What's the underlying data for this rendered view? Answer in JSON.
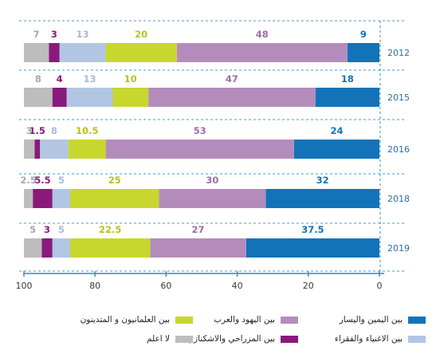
{
  "chart_data": {
    "type": "bar",
    "orientation": "horizontal-stacked",
    "direction": "right-to-left",
    "categories": [
      "2012",
      "2015",
      "2016",
      "2018",
      "2019"
    ],
    "series": [
      {
        "name": "بين اليمين واليسار",
        "color": "#1273b9",
        "label_color": "#1273b9",
        "values": [
          9,
          18,
          24,
          32,
          37.5
        ]
      },
      {
        "name": "بين اليهود والعرب",
        "color": "#b48cbc",
        "label_color": "#9b6fa8",
        "values": [
          48,
          47,
          53,
          30,
          27
        ]
      },
      {
        "name": "بين العلمانيون و المتدينون",
        "color": "#c8d72e",
        "label_color": "#b5c41d",
        "values": [
          20,
          10,
          10.5,
          25,
          22.5
        ]
      },
      {
        "name": "بين الاغنياء والفقراء",
        "color": "#b2c6e4",
        "label_color": "#a8bbd9",
        "values": [
          13,
          13,
          8,
          5,
          5
        ]
      },
      {
        "name": "بين المزراحي والاشكنازي",
        "color": "#8a1a7a",
        "label_color": "#8a1a7a",
        "values": [
          3,
          4,
          1.5,
          5.5,
          3
        ]
      },
      {
        "name": "لا اعلم",
        "color": "#bdbdbd",
        "label_color": "#a9a9a9",
        "values": [
          7,
          8,
          3,
          2.5,
          5
        ]
      }
    ],
    "xlim": [
      100,
      0
    ],
    "xticks": [
      "100",
      "80",
      "60",
      "40",
      "20",
      "0"
    ],
    "xtick_values": [
      100,
      80,
      60,
      40,
      20,
      0
    ],
    "grid": "dashed vertical axis at right, dashed row separators",
    "axis_color": "#2b8cc4",
    "legend_position": "bottom"
  }
}
